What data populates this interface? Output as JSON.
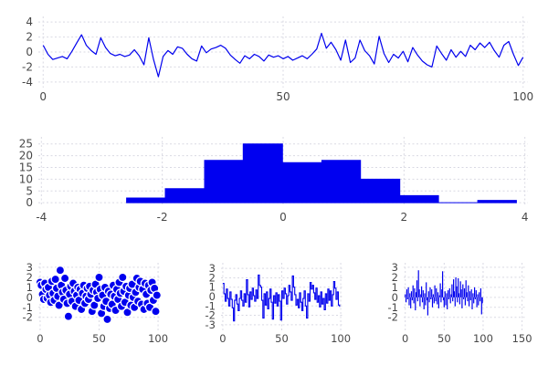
{
  "figure": {
    "background": "#ffffff",
    "series_color": "#0000ee",
    "histogram_fill": "#0000f0",
    "grid_color": "#d9d9e3",
    "tick_label_color": "#474747",
    "grid_on": true
  },
  "chart_data": [
    {
      "id": "timeseries",
      "type": "line",
      "title": "",
      "xlabel": "",
      "ylabel": "",
      "x_start": 0,
      "x_step": 1,
      "values": [
        0.9,
        -0.3,
        -1.0,
        -0.8,
        -0.6,
        -0.9,
        0.1,
        1.2,
        2.3,
        0.9,
        0.2,
        -0.3,
        1.9,
        0.6,
        -0.2,
        -0.5,
        -0.3,
        -0.6,
        -0.4,
        0.3,
        -0.5,
        -1.7,
        1.9,
        -1.0,
        -3.3,
        -0.6,
        0.2,
        -0.3,
        0.7,
        0.5,
        -0.3,
        -0.9,
        -1.2,
        0.8,
        -0.1,
        0.4,
        0.6,
        0.9,
        0.5,
        -0.4,
        -1.0,
        -1.5,
        -0.5,
        -0.9,
        -0.3,
        -0.6,
        -1.2,
        -0.4,
        -0.7,
        -0.5,
        -0.9,
        -0.6,
        -1.1,
        -0.8,
        -0.5,
        -0.9,
        -0.3,
        0.4,
        2.5,
        0.5,
        1.3,
        0.3,
        -1.1,
        1.6,
        -1.4,
        -0.8,
        1.6,
        0.2,
        -0.5,
        -1.6,
        2.1,
        -0.2,
        -1.4,
        -0.3,
        -0.8,
        0.1,
        -1.3,
        0.6,
        -0.4,
        -1.2,
        -1.7,
        -2.0,
        0.8,
        -0.2,
        -1.1,
        0.3,
        -0.7,
        0.1,
        -0.6,
        0.9,
        0.3,
        1.2,
        0.6,
        1.3,
        0.2,
        -0.7,
        0.9,
        1.4,
        -0.3,
        -1.8,
        -0.7
      ],
      "xlim": [
        -1,
        101
      ],
      "ylim": [
        -4.75,
        4.75
      ],
      "xticks": [
        0,
        50,
        100
      ],
      "yticks": [
        4,
        2,
        0,
        -2,
        -4
      ],
      "grid": true
    },
    {
      "id": "histogram",
      "type": "bar",
      "title": "",
      "xlabel": "",
      "ylabel": "",
      "bin_edges": [
        -2.59,
        -1.95,
        -1.3,
        -0.66,
        -0.01,
        0.64,
        1.28,
        1.93,
        2.57,
        3.22,
        3.86
      ],
      "counts": [
        2,
        6,
        18,
        25,
        17,
        18,
        10,
        3,
        0,
        1
      ],
      "xlim": [
        -4.05,
        4.05
      ],
      "ylim": [
        -1.5,
        28
      ],
      "xticks": [
        -4,
        -2,
        0,
        2,
        4
      ],
      "yticks": [
        0,
        5,
        10,
        15,
        20,
        25
      ],
      "grid": true
    },
    {
      "id": "scatter",
      "type": "scatter",
      "title": "",
      "xlabel": "",
      "ylabel": "",
      "x_start": 0,
      "x_step": 1,
      "marker_radius": 4.6,
      "values": [
        1.5,
        1.2,
        0.3,
        -0.2,
        1.4,
        0.8,
        -0.1,
        1.0,
        0.2,
        -0.5,
        1.6,
        0.4,
        -0.3,
        1.8,
        0.9,
        0.1,
        -0.8,
        2.7,
        1.2,
        0.5,
        -0.2,
        1.9,
        0.7,
        -0.6,
        -1.9,
        0.3,
        1.1,
        -0.4,
        1.4,
        0.6,
        -0.9,
        0.2,
        1.0,
        -0.3,
        0.8,
        -1.2,
        0.4,
        1.2,
        -0.6,
        0.1,
        0.9,
        -0.2,
        1.1,
        0.3,
        -1.4,
        0.7,
        -0.8,
        1.3,
        0.5,
        -0.1,
        2.0,
        0.8,
        -1.6,
        0.2,
        -0.9,
        1.0,
        -0.4,
        -2.2,
        0.6,
        -1.1,
        0.3,
        -0.7,
        1.2,
        0.1,
        -1.3,
        0.8,
        -0.2,
        1.5,
        0.4,
        -0.9,
        2.0,
        0.6,
        -0.5,
        1.1,
        -1.5,
        0.2,
        0.9,
        -0.8,
        1.3,
        0.0,
        -1.0,
        0.5,
        1.9,
        -0.4,
        1.0,
        1.6,
        -0.7,
        0.8,
        -1.2,
        1.4,
        0.3,
        -0.6,
        1.2,
        -1.0,
        0.7,
        1.5,
        -0.3,
        0.9,
        -1.4,
        0.2
      ],
      "xlim": [
        -1.5,
        101.5
      ],
      "ylim": [
        -3.3,
        3.45
      ],
      "xticks": [
        0,
        50,
        100
      ],
      "yticks": [
        3,
        2,
        1,
        0,
        -1,
        -2
      ],
      "grid": true
    },
    {
      "id": "step",
      "type": "step",
      "title": "",
      "xlabel": "",
      "ylabel": "",
      "x_start": 0,
      "x_step": 1,
      "values": [
        1.4,
        0.3,
        -0.5,
        0.8,
        -0.2,
        -1.0,
        0.5,
        -0.3,
        -1.2,
        -2.6,
        -0.4,
        0.2,
        -0.8,
        -1.5,
        -0.2,
        0.6,
        -0.4,
        -1.0,
        0.3,
        -0.6,
        1.8,
        0.2,
        -1.1,
        0.5,
        -0.3,
        0.9,
        0.1,
        -0.5,
        0.7,
        -0.2,
        2.3,
        1.2,
        1.0,
        -0.4,
        -2.3,
        0.3,
        -0.9,
        0.5,
        -1.3,
        -0.2,
        0.8,
        -0.6,
        -2.4,
        0.1,
        -0.7,
        0.4,
        -1.0,
        0.2,
        -0.5,
        -2.5,
        0.6,
        -0.2,
        0.9,
        0.3,
        -0.8,
        0.1,
        1.2,
        0.5,
        -0.4,
        2.2,
        1.0,
        0.2,
        -0.9,
        -0.3,
        -1.2,
        0.4,
        -0.6,
        -1.5,
        -0.2,
        0.6,
        -1.0,
        -2.3,
        0.3,
        -0.5,
        1.5,
        0.8,
        1.2,
        0.4,
        -0.3,
        0.9,
        -0.6,
        0.1,
        -1.1,
        0.5,
        -0.8,
        -0.2,
        -1.4,
        0.3,
        -0.7,
        0.8,
        -0.4,
        0.6,
        -1.0,
        0.2,
        1.6,
        0.9,
        -0.3,
        0.5,
        -0.9,
        -1.1
      ],
      "xlim": [
        -1.5,
        101.5
      ],
      "ylim": [
        -3.6,
        3.6
      ],
      "xticks": [
        0,
        50,
        100
      ],
      "yticks": [
        3,
        2,
        1,
        0,
        -1,
        -2,
        -3
      ],
      "grid": true
    },
    {
      "id": "stem",
      "type": "stem",
      "title": "",
      "xlabel": "",
      "ylabel": "",
      "x_start": 0,
      "x_step": 1,
      "values": [
        0.3,
        -0.5,
        0.8,
        -0.2,
        1.0,
        -0.8,
        0.4,
        -1.1,
        0.6,
        -0.3,
        1.2,
        -0.6,
        0.9,
        -1.3,
        0.5,
        1.7,
        -0.4,
        2.7,
        0.8,
        -0.9,
        0.3,
        1.1,
        -0.5,
        0.7,
        -1.2,
        0.4,
        -0.8,
        1.5,
        -0.3,
        -1.8,
        0.6,
        -0.5,
        1.0,
        -0.2,
        0.8,
        -1.0,
        0.3,
        -0.6,
        1.2,
        -0.4,
        0.9,
        -0.7,
        0.5,
        -1.1,
        0.2,
        1.4,
        -0.5,
        0.8,
        2.6,
        -0.3,
        -1.0,
        0.6,
        -0.8,
        0.4,
        -1.2,
        0.7,
        -0.2,
        0.9,
        -0.6,
        0.3,
        1.3,
        -0.4,
        1.8,
        0.6,
        -0.9,
        2.0,
        1.1,
        -0.5,
        1.9,
        0.4,
        -0.7,
        1.6,
        0.8,
        -1.1,
        1.3,
        -0.2,
        0.9,
        -0.8,
        1.7,
        0.5,
        -0.4,
        1.2,
        -0.9,
        0.6,
        -0.3,
        0.8,
        -1.2,
        0.4,
        -0.6,
        1.0,
        -0.2,
        0.7,
        -1.0,
        0.3,
        -0.8,
        0.5,
        -0.4,
        0.9,
        -1.7,
        -0.6
      ],
      "xlim": [
        -2,
        154
      ],
      "ylim": [
        -3.3,
        3.45
      ],
      "xticks": [
        0,
        50,
        100,
        150
      ],
      "yticks": [
        3,
        2,
        1,
        0,
        -1,
        -2
      ],
      "grid": true
    }
  ]
}
